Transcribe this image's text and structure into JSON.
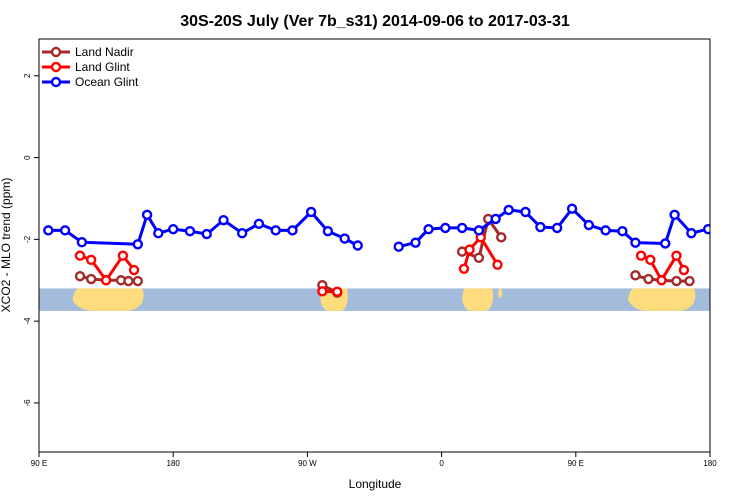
{
  "chart_data": {
    "type": "line",
    "title": "30S-20S July (Ver 7b_s31)   2014-09-06 to 2017-03-31",
    "xlabel": "Longitude",
    "ylabel": "XCO2 - MLO trend (ppm)",
    "xlim": [
      90,
      450
    ],
    "ylim": [
      -7.2,
      2.9
    ],
    "yticks": [
      -6,
      -4,
      -2,
      0,
      2
    ],
    "ytick_labels": [
      "-6",
      "-4",
      "-2",
      "0",
      "2"
    ],
    "xticks": [
      90,
      180,
      270,
      360,
      450,
      540
    ],
    "xtick_labels": [
      "90 E",
      "180",
      "90 W",
      "0",
      "90 E",
      "180"
    ],
    "legend_position": "top-left",
    "land_strip": {
      "y_range": [
        -3.75,
        -3.2
      ],
      "ocean_color": "#a4bcdc",
      "land_color": "#fcdc7c"
    },
    "series": [
      {
        "name": "Land Nadir",
        "color": "#a52a2a",
        "segments": [
          [
            [
              112,
              -2.9
            ],
            [
              118,
              -2.97
            ],
            [
              126,
              -3.0
            ],
            [
              134,
              -3.0
            ],
            [
              138,
              -3.02
            ],
            [
              143,
              -3.02
            ]
          ],
          [
            [
              242,
              -3.12
            ],
            [
              250,
              -3.3
            ]
          ],
          [
            [
              317,
              -2.3
            ],
            [
              326,
              -2.45
            ],
            [
              331,
              -1.5
            ],
            [
              338,
              -1.95
            ]
          ],
          [
            [
              410,
              -2.88
            ],
            [
              417,
              -2.97
            ],
            [
              424,
              -3.0
            ],
            [
              432,
              -3.02
            ],
            [
              439,
              -3.02
            ]
          ]
        ]
      },
      {
        "name": "Land Glint",
        "color": "#ff0000",
        "segments": [
          [
            [
              112,
              -2.4
            ],
            [
              118,
              -2.5
            ],
            [
              126,
              -3.0
            ],
            [
              135,
              -2.4
            ],
            [
              141,
              -2.75
            ]
          ],
          [
            [
              242,
              -3.27
            ],
            [
              250,
              -3.28
            ]
          ],
          [
            [
              318,
              -2.72
            ],
            [
              321,
              -2.25
            ],
            [
              327,
              -1.95
            ],
            [
              336,
              -2.62
            ]
          ],
          [
            [
              413,
              -2.4
            ],
            [
              418,
              -2.5
            ],
            [
              424,
              -3.0
            ],
            [
              432,
              -2.4
            ],
            [
              436,
              -2.75
            ]
          ]
        ]
      },
      {
        "name": "Ocean Glint",
        "color": "#0000ff",
        "segments": [
          [
            [
              95,
              -1.78
            ],
            [
              104,
              -1.78
            ],
            [
              113,
              -2.07
            ],
            [
              143,
              -2.12
            ],
            [
              148,
              -1.4
            ],
            [
              154,
              -1.85
            ],
            [
              162,
              -1.75
            ],
            [
              171,
              -1.8
            ],
            [
              180,
              -1.87
            ],
            [
              189,
              -1.53
            ],
            [
              199,
              -1.85
            ],
            [
              208,
              -1.62
            ],
            [
              217,
              -1.78
            ],
            [
              226,
              -1.78
            ],
            [
              236,
              -1.33
            ],
            [
              245,
              -1.8
            ],
            [
              254,
              -1.98
            ],
            [
              261,
              -2.15
            ]
          ],
          [
            [
              283,
              -2.18
            ],
            [
              292,
              -2.08
            ],
            [
              299,
              -1.75
            ],
            [
              308,
              -1.72
            ],
            [
              317,
              -1.72
            ],
            [
              326,
              -1.78
            ],
            [
              335,
              -1.5
            ],
            [
              342,
              -1.28
            ],
            [
              351,
              -1.33
            ],
            [
              359,
              -1.7
            ],
            [
              368,
              -1.72
            ],
            [
              376,
              -1.25
            ],
            [
              385,
              -1.65
            ],
            [
              394,
              -1.78
            ],
            [
              403,
              -1.8
            ],
            [
              410,
              -2.08
            ],
            [
              426,
              -2.1
            ],
            [
              431,
              -1.4
            ],
            [
              440,
              -1.85
            ],
            [
              449,
              -1.75
            ]
          ]
        ]
      }
    ]
  }
}
